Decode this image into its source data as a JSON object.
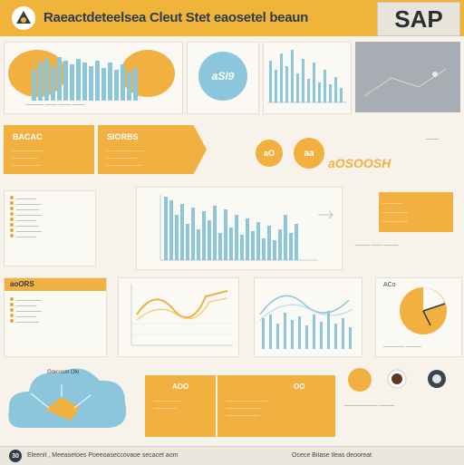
{
  "header": {
    "title": "Raeactdeteelsea Cleut Stet eaosetel beaun",
    "brand": "SAP"
  },
  "row1": {
    "kpi_value": "aSI9",
    "caption_left": "______  ____  ____  ____",
    "caption_right": "_____  ____"
  },
  "row2": {
    "banner_left_title": "BACAC",
    "banner_mid_title": "SIORBS",
    "circle1": "aO",
    "circle2": "aa",
    "script_text": "aOSOOSH"
  },
  "row3": {
    "list_items": [
      "________",
      "__________",
      "_________",
      "__________",
      "________",
      "_________",
      "__________",
      "________"
    ],
    "right_lines": [
      "________",
      "__________",
      "__________"
    ]
  },
  "row4": {
    "left_title": "aoORS",
    "list_items": [
      "__________",
      "________",
      "__________",
      "________",
      "_________"
    ],
    "pie_label": "ACo"
  },
  "row5": {
    "cloud_caption": "Grecocm Olo",
    "card_left_title": "AOO",
    "card_right_title": "OO"
  },
  "footer": {
    "badge": "30",
    "text_left": "Eleenit , Meeasetoes Poeeoaseccovaoe secacet aom",
    "text_right": "Ocece Bitase tleas deooreat"
  }
}
